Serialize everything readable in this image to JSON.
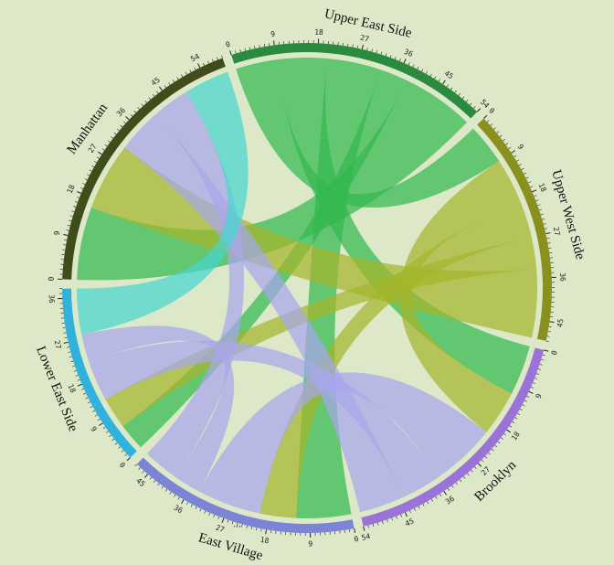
{
  "chart_data": {
    "type": "chord",
    "groups": [
      {
        "name": "Upper East Side",
        "total": 54,
        "color": "#2a8a3e",
        "chord_color": "#33b94f"
      },
      {
        "name": "Upper West Side",
        "total": 49,
        "color": "#8a901e",
        "chord_color": "#a3b62c"
      },
      {
        "name": "Brooklyn",
        "total": 54,
        "color": "#9a72d8",
        "chord_color": "#a8a6ec"
      },
      {
        "name": "East Village",
        "total": 48,
        "color": "#7c84d6",
        "chord_color": "#a8a6ec"
      },
      {
        "name": "Lower East Side",
        "total": 38,
        "color": "#31b2dc",
        "chord_color": "#46d6cf"
      },
      {
        "name": "Manhattan",
        "total": 59,
        "color": "#3e4d1a",
        "chord_color": "#8da52b"
      }
    ],
    "tick_step": 9,
    "tick_labels": [
      "0",
      "9",
      "18",
      "27",
      "36",
      "45",
      "54"
    ],
    "overflow_marker": "...",
    "links": [
      {
        "source": 0,
        "target": 1,
        "value": 9
      },
      {
        "source": 0,
        "target": 2,
        "value": 11
      },
      {
        "source": 0,
        "target": 3,
        "value": 12
      },
      {
        "source": 0,
        "target": 4,
        "value": 6
      },
      {
        "source": 0,
        "target": 5,
        "value": 16
      },
      {
        "source": 1,
        "target": 2,
        "value": 10
      },
      {
        "source": 1,
        "target": 3,
        "value": 8
      },
      {
        "source": 1,
        "target": 4,
        "value": 7
      },
      {
        "source": 1,
        "target": 5,
        "value": 15
      },
      {
        "source": 2,
        "target": 3,
        "value": 14
      },
      {
        "source": 2,
        "target": 4,
        "value": 9
      },
      {
        "source": 2,
        "target": 5,
        "value": 10
      },
      {
        "source": 3,
        "target": 4,
        "value": 6
      },
      {
        "source": 3,
        "target": 5,
        "value": 8
      },
      {
        "source": 4,
        "target": 5,
        "value": 10
      }
    ]
  }
}
